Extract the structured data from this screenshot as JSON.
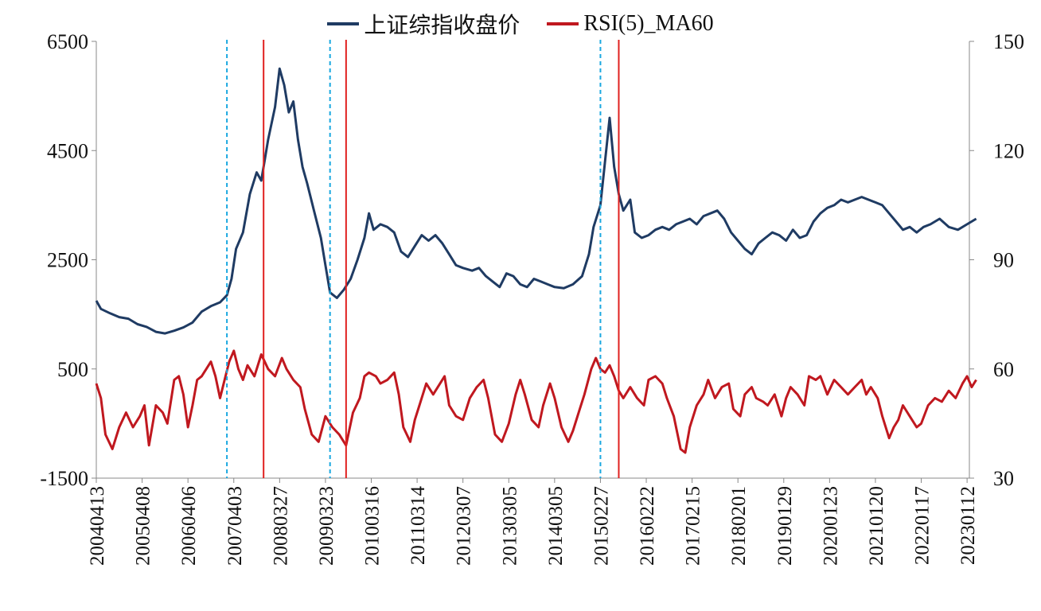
{
  "chart_data": {
    "type": "line",
    "title": "",
    "grid": false,
    "legend": "top-center",
    "x_tick_labels": [
      "20040413",
      "20050408",
      "20060406",
      "20070403",
      "20080327",
      "20090323",
      "20100316",
      "20110314",
      "20120307",
      "20130305",
      "20140305",
      "20150227",
      "20160222",
      "20170215",
      "20180201",
      "20190129",
      "20200123",
      "20210120",
      "20220117",
      "20230112"
    ],
    "y_left": {
      "ticks": [
        "6500",
        "4500",
        "2500",
        "500",
        "-1500"
      ],
      "ylim": [
        -1500,
        6500
      ]
    },
    "y_right": {
      "ticks": [
        "150",
        "120",
        "90",
        "60",
        "30"
      ],
      "ylim": [
        30,
        150
      ]
    },
    "series": [
      {
        "name": "上证综指收盘价",
        "axis": "left",
        "color": "#1f3b63",
        "points": [
          [
            0,
            1750
          ],
          [
            0.1,
            1600
          ],
          [
            0.3,
            1520
          ],
          [
            0.5,
            1450
          ],
          [
            0.7,
            1420
          ],
          [
            0.9,
            1320
          ],
          [
            1.1,
            1270
          ],
          [
            1.3,
            1180
          ],
          [
            1.5,
            1150
          ],
          [
            1.7,
            1200
          ],
          [
            1.9,
            1260
          ],
          [
            2.1,
            1350
          ],
          [
            2.3,
            1550
          ],
          [
            2.5,
            1650
          ],
          [
            2.7,
            1720
          ],
          [
            2.85,
            1850
          ],
          [
            2.95,
            2150
          ],
          [
            3.05,
            2700
          ],
          [
            3.2,
            3000
          ],
          [
            3.35,
            3700
          ],
          [
            3.5,
            4100
          ],
          [
            3.6,
            3950
          ],
          [
            3.75,
            4700
          ],
          [
            3.9,
            5300
          ],
          [
            4.0,
            6000
          ],
          [
            4.1,
            5700
          ],
          [
            4.2,
            5200
          ],
          [
            4.3,
            5400
          ],
          [
            4.4,
            4700
          ],
          [
            4.5,
            4200
          ],
          [
            4.6,
            3900
          ],
          [
            4.75,
            3400
          ],
          [
            4.9,
            2900
          ],
          [
            5.0,
            2400
          ],
          [
            5.1,
            1900
          ],
          [
            5.25,
            1800
          ],
          [
            5.4,
            1950
          ],
          [
            5.55,
            2150
          ],
          [
            5.7,
            2500
          ],
          [
            5.85,
            2900
          ],
          [
            5.95,
            3350
          ],
          [
            6.05,
            3050
          ],
          [
            6.2,
            3150
          ],
          [
            6.35,
            3100
          ],
          [
            6.5,
            3000
          ],
          [
            6.65,
            2650
          ],
          [
            6.8,
            2550
          ],
          [
            6.95,
            2750
          ],
          [
            7.1,
            2950
          ],
          [
            7.25,
            2850
          ],
          [
            7.4,
            2950
          ],
          [
            7.55,
            2800
          ],
          [
            7.7,
            2600
          ],
          [
            7.85,
            2400
          ],
          [
            8.0,
            2350
          ],
          [
            8.2,
            2300
          ],
          [
            8.35,
            2350
          ],
          [
            8.5,
            2200
          ],
          [
            8.65,
            2100
          ],
          [
            8.8,
            2000
          ],
          [
            8.95,
            2250
          ],
          [
            9.1,
            2200
          ],
          [
            9.25,
            2050
          ],
          [
            9.4,
            2000
          ],
          [
            9.55,
            2150
          ],
          [
            9.7,
            2100
          ],
          [
            9.85,
            2050
          ],
          [
            10.0,
            2000
          ],
          [
            10.2,
            1980
          ],
          [
            10.4,
            2050
          ],
          [
            10.6,
            2200
          ],
          [
            10.75,
            2600
          ],
          [
            10.85,
            3100
          ],
          [
            11.0,
            3500
          ],
          [
            11.1,
            4300
          ],
          [
            11.2,
            5100
          ],
          [
            11.3,
            4200
          ],
          [
            11.4,
            3700
          ],
          [
            11.5,
            3400
          ],
          [
            11.65,
            3600
          ],
          [
            11.75,
            3000
          ],
          [
            11.9,
            2900
          ],
          [
            12.05,
            2950
          ],
          [
            12.2,
            3050
          ],
          [
            12.35,
            3100
          ],
          [
            12.5,
            3050
          ],
          [
            12.65,
            3150
          ],
          [
            12.8,
            3200
          ],
          [
            12.95,
            3250
          ],
          [
            13.1,
            3150
          ],
          [
            13.25,
            3300
          ],
          [
            13.4,
            3350
          ],
          [
            13.55,
            3400
          ],
          [
            13.7,
            3250
          ],
          [
            13.85,
            3000
          ],
          [
            14.0,
            2850
          ],
          [
            14.15,
            2700
          ],
          [
            14.3,
            2600
          ],
          [
            14.45,
            2800
          ],
          [
            14.6,
            2900
          ],
          [
            14.75,
            3000
          ],
          [
            14.9,
            2950
          ],
          [
            15.05,
            2850
          ],
          [
            15.2,
            3050
          ],
          [
            15.35,
            2900
          ],
          [
            15.5,
            2950
          ],
          [
            15.65,
            3200
          ],
          [
            15.8,
            3350
          ],
          [
            15.95,
            3450
          ],
          [
            16.1,
            3500
          ],
          [
            16.25,
            3600
          ],
          [
            16.4,
            3550
          ],
          [
            16.55,
            3600
          ],
          [
            16.7,
            3650
          ],
          [
            16.85,
            3600
          ],
          [
            17.0,
            3550
          ],
          [
            17.15,
            3500
          ],
          [
            17.3,
            3350
          ],
          [
            17.45,
            3200
          ],
          [
            17.6,
            3050
          ],
          [
            17.75,
            3100
          ],
          [
            17.9,
            3000
          ],
          [
            18.05,
            3100
          ],
          [
            18.2,
            3150
          ],
          [
            18.4,
            3250
          ],
          [
            18.6,
            3100
          ],
          [
            18.8,
            3050
          ],
          [
            19.0,
            3150
          ],
          [
            19.2,
            3250
          ]
        ]
      },
      {
        "name": "RSI(5)_MA60",
        "axis": "right",
        "color": "#c0181f",
        "points": [
          [
            0,
            56
          ],
          [
            0.1,
            52
          ],
          [
            0.2,
            42
          ],
          [
            0.35,
            38
          ],
          [
            0.5,
            44
          ],
          [
            0.65,
            48
          ],
          [
            0.8,
            44
          ],
          [
            0.95,
            47
          ],
          [
            1.05,
            50
          ],
          [
            1.15,
            39
          ],
          [
            1.3,
            50
          ],
          [
            1.45,
            48
          ],
          [
            1.55,
            45
          ],
          [
            1.7,
            57
          ],
          [
            1.8,
            58
          ],
          [
            1.9,
            53
          ],
          [
            2.0,
            44
          ],
          [
            2.1,
            50
          ],
          [
            2.2,
            57
          ],
          [
            2.3,
            58
          ],
          [
            2.4,
            60
          ],
          [
            2.5,
            62
          ],
          [
            2.6,
            58
          ],
          [
            2.7,
            52
          ],
          [
            2.8,
            57
          ],
          [
            2.9,
            62
          ],
          [
            3.0,
            65
          ],
          [
            3.1,
            60
          ],
          [
            3.2,
            57
          ],
          [
            3.3,
            61
          ],
          [
            3.45,
            58
          ],
          [
            3.6,
            64
          ],
          [
            3.75,
            60
          ],
          [
            3.9,
            58
          ],
          [
            4.05,
            63
          ],
          [
            4.15,
            60
          ],
          [
            4.3,
            57
          ],
          [
            4.45,
            55
          ],
          [
            4.55,
            49
          ],
          [
            4.7,
            42
          ],
          [
            4.85,
            40
          ],
          [
            5.0,
            47
          ],
          [
            5.15,
            44
          ],
          [
            5.3,
            42
          ],
          [
            5.45,
            39
          ],
          [
            5.6,
            48
          ],
          [
            5.75,
            52
          ],
          [
            5.85,
            58
          ],
          [
            5.95,
            59
          ],
          [
            6.1,
            58
          ],
          [
            6.2,
            56
          ],
          [
            6.35,
            57
          ],
          [
            6.5,
            59
          ],
          [
            6.6,
            53
          ],
          [
            6.7,
            44
          ],
          [
            6.85,
            40
          ],
          [
            6.95,
            46
          ],
          [
            7.05,
            50
          ],
          [
            7.2,
            56
          ],
          [
            7.35,
            53
          ],
          [
            7.5,
            56
          ],
          [
            7.6,
            58
          ],
          [
            7.7,
            50
          ],
          [
            7.85,
            47
          ],
          [
            8.0,
            46
          ],
          [
            8.15,
            52
          ],
          [
            8.3,
            55
          ],
          [
            8.45,
            57
          ],
          [
            8.55,
            52
          ],
          [
            8.7,
            42
          ],
          [
            8.85,
            40
          ],
          [
            9.0,
            45
          ],
          [
            9.15,
            53
          ],
          [
            9.25,
            57
          ],
          [
            9.35,
            53
          ],
          [
            9.5,
            46
          ],
          [
            9.65,
            44
          ],
          [
            9.75,
            50
          ],
          [
            9.9,
            56
          ],
          [
            10.0,
            52
          ],
          [
            10.15,
            44
          ],
          [
            10.3,
            40
          ],
          [
            10.4,
            43
          ],
          [
            10.55,
            49
          ],
          [
            10.65,
            53
          ],
          [
            10.8,
            60
          ],
          [
            10.9,
            63
          ],
          [
            11.0,
            60
          ],
          [
            11.1,
            59
          ],
          [
            11.2,
            61
          ],
          [
            11.3,
            58
          ],
          [
            11.4,
            54
          ],
          [
            11.5,
            52
          ],
          [
            11.65,
            55
          ],
          [
            11.8,
            52
          ],
          [
            11.95,
            50
          ],
          [
            12.05,
            57
          ],
          [
            12.2,
            58
          ],
          [
            12.35,
            56
          ],
          [
            12.45,
            52
          ],
          [
            12.6,
            47
          ],
          [
            12.75,
            38
          ],
          [
            12.85,
            37
          ],
          [
            12.95,
            44
          ],
          [
            13.1,
            50
          ],
          [
            13.25,
            53
          ],
          [
            13.35,
            57
          ],
          [
            13.5,
            52
          ],
          [
            13.65,
            55
          ],
          [
            13.8,
            56
          ],
          [
            13.9,
            49
          ],
          [
            14.05,
            47
          ],
          [
            14.15,
            53
          ],
          [
            14.3,
            55
          ],
          [
            14.4,
            52
          ],
          [
            14.55,
            51
          ],
          [
            14.65,
            50
          ],
          [
            14.8,
            53
          ],
          [
            14.95,
            47
          ],
          [
            15.05,
            52
          ],
          [
            15.15,
            55
          ],
          [
            15.3,
            53
          ],
          [
            15.45,
            50
          ],
          [
            15.55,
            58
          ],
          [
            15.7,
            57
          ],
          [
            15.8,
            58
          ],
          [
            15.95,
            53
          ],
          [
            16.1,
            57
          ],
          [
            16.25,
            55
          ],
          [
            16.4,
            53
          ],
          [
            16.55,
            55
          ],
          [
            16.7,
            57
          ],
          [
            16.8,
            53
          ],
          [
            16.9,
            55
          ],
          [
            17.05,
            52
          ],
          [
            17.15,
            47
          ],
          [
            17.3,
            41
          ],
          [
            17.4,
            44
          ],
          [
            17.5,
            46
          ],
          [
            17.6,
            50
          ],
          [
            17.75,
            47
          ],
          [
            17.9,
            44
          ],
          [
            18.0,
            45
          ],
          [
            18.15,
            50
          ],
          [
            18.3,
            52
          ],
          [
            18.45,
            51
          ],
          [
            18.6,
            54
          ],
          [
            18.75,
            52
          ],
          [
            18.9,
            56
          ],
          [
            19.0,
            58
          ],
          [
            19.1,
            55
          ],
          [
            19.2,
            57
          ]
        ]
      }
    ],
    "vertical_markers": [
      {
        "style": "dashed",
        "color": "#1aa8e0",
        "x": 2.85
      },
      {
        "style": "solid",
        "color": "#e0201f",
        "x": 3.65
      },
      {
        "style": "dashed",
        "color": "#1aa8e0",
        "x": 5.1
      },
      {
        "style": "solid",
        "color": "#e0201f",
        "x": 5.45
      },
      {
        "style": "dashed",
        "color": "#1aa8e0",
        "x": 11.0
      },
      {
        "style": "solid",
        "color": "#e0201f",
        "x": 11.4
      }
    ]
  }
}
